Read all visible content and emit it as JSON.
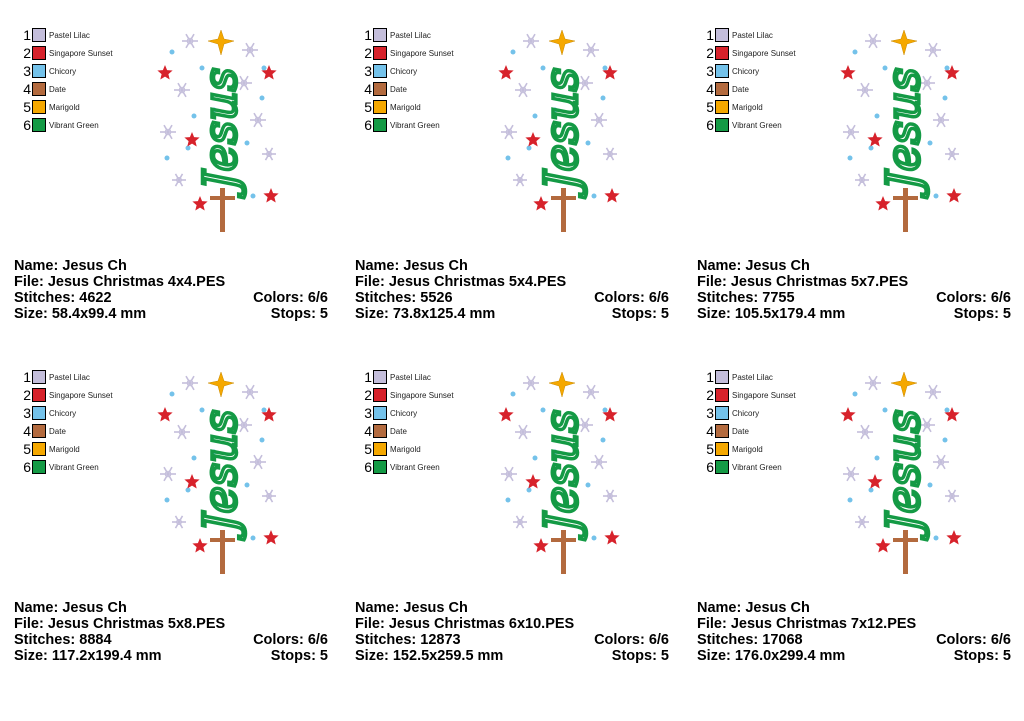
{
  "thread_colors": [
    {
      "number": "1",
      "name": "Pastel Lilac",
      "hex": "#c4bedb"
    },
    {
      "number": "2",
      "name": "Singapore Sunset",
      "hex": "#d7222b"
    },
    {
      "number": "3",
      "name": "Chicory",
      "hex": "#74c2ea"
    },
    {
      "number": "4",
      "name": "Date",
      "hex": "#b36a3e"
    },
    {
      "number": "5",
      "name": "Marigold",
      "hex": "#f5a800"
    },
    {
      "number": "6",
      "name": "Vibrant Green",
      "hex": "#149a45"
    }
  ],
  "design_lettering": "Jesus",
  "designs": [
    {
      "name": "Name: Jesus Ch",
      "file": "File: Jesus Christmas 4x4.PES",
      "stitches": "Stitches: 4622",
      "colors": "Colors: 6/6",
      "size": "Size: 58.4x99.4 mm",
      "stops": "Stops: 5"
    },
    {
      "name": "Name: Jesus Ch",
      "file": "File: Jesus Christmas 5x4.PES",
      "stitches": "Stitches: 5526",
      "colors": "Colors: 6/6",
      "size": "Size: 73.8x125.4 mm",
      "stops": "Stops: 5"
    },
    {
      "name": "Name: Jesus Ch",
      "file": "File: Jesus Christmas 5x7.PES",
      "stitches": "Stitches: 7755",
      "colors": "Colors: 6/6",
      "size": "Size: 105.5x179.4 mm",
      "stops": "Stops: 5"
    },
    {
      "name": "Name: Jesus Ch",
      "file": "File: Jesus Christmas 5x8.PES",
      "stitches": "Stitches: 8884",
      "colors": "Colors: 6/6",
      "size": "Size: 117.2x199.4 mm",
      "stops": "Stops: 5"
    },
    {
      "name": "Name: Jesus Ch",
      "file": "File: Jesus Christmas 6x10.PES",
      "stitches": "Stitches: 12873",
      "colors": "Colors: 6/6",
      "size": "Size: 152.5x259.5 mm",
      "stops": "Stops: 5"
    },
    {
      "name": "Name: Jesus Ch",
      "file": "File: Jesus Christmas 7x12.PES",
      "stitches": "Stitches: 17068",
      "colors": "Colors: 6/6",
      "size": "Size: 176.0x299.4 mm",
      "stops": "Stops: 5"
    }
  ]
}
